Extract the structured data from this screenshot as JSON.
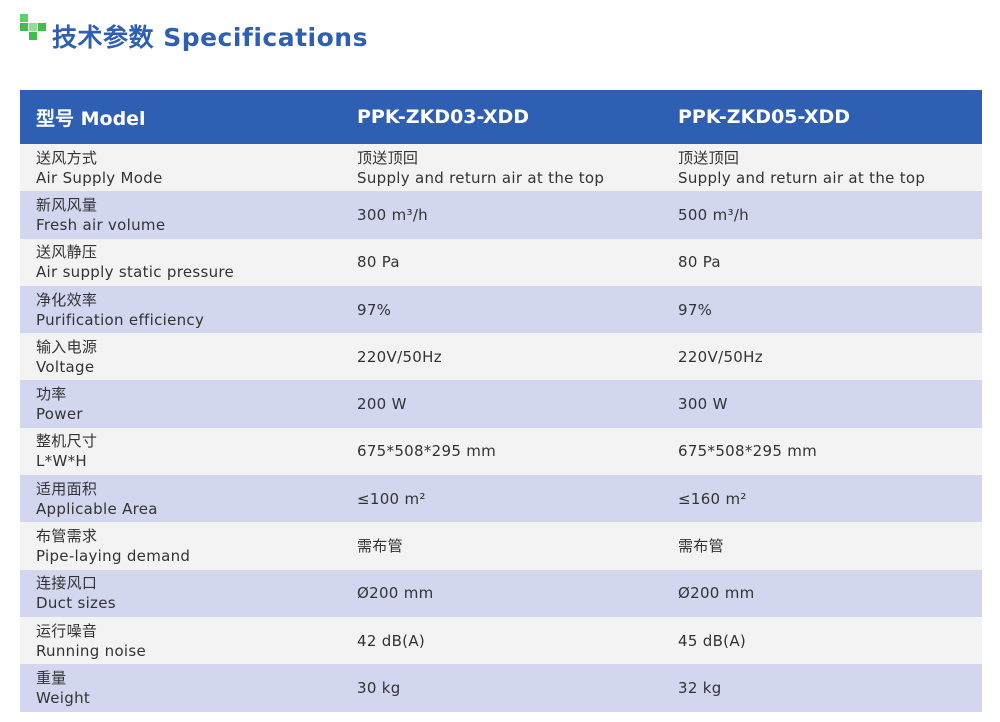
{
  "title": "技术参数 Specifications",
  "colors": {
    "header": "#2f5fb3",
    "row_alt": "#d3d6ef",
    "row": "#f3f3f3",
    "logo": "#3fbf4a"
  },
  "header": [
    "型号 Model",
    "PPK-ZKD03-XDD",
    "PPK-ZKD05-XDD"
  ],
  "rows": [
    {
      "zh": "送风方式",
      "en": "Air Supply Mode",
      "v1": "顶送顶回\nSupply and return air at the top",
      "v2": "顶送顶回\nSupply and return air at the top"
    },
    {
      "zh": "新风风量",
      "en": "Fresh air volume",
      "v1": "300 m³/h",
      "v2": "500 m³/h"
    },
    {
      "zh": "送风静压",
      "en": "Air supply static pressure",
      "v1": "80 Pa",
      "v2": "80 Pa"
    },
    {
      "zh": "净化效率",
      "en": "Purification efficiency",
      "v1": "97%",
      "v2": "97%"
    },
    {
      "zh": "输入电源",
      "en": "Voltage",
      "v1": "220V/50Hz",
      "v2": "220V/50Hz"
    },
    {
      "zh": "功率",
      "en": "Power",
      "v1": "200 W",
      "v2": "300 W"
    },
    {
      "zh": "整机尺寸",
      "en": "L*W*H",
      "v1": "675*508*295 mm",
      "v2": "675*508*295 mm"
    },
    {
      "zh": "适用面积",
      "en": "Applicable Area",
      "v1": "≤100 m²",
      "v2": "≤160 m²"
    },
    {
      "zh": "布管需求",
      "en": "Pipe-laying demand",
      "v1": "需布管",
      "v2": "需布管"
    },
    {
      "zh": "连接风口",
      "en": "Duct sizes",
      "v1": "Ø200 mm",
      "v2": "Ø200 mm"
    },
    {
      "zh": "运行噪音",
      "en": "Running noise",
      "v1": "42 dB(A)",
      "v2": "45 dB(A)"
    },
    {
      "zh": "重量",
      "en": "Weight",
      "v1": "30 kg",
      "v2": "32 kg"
    }
  ]
}
